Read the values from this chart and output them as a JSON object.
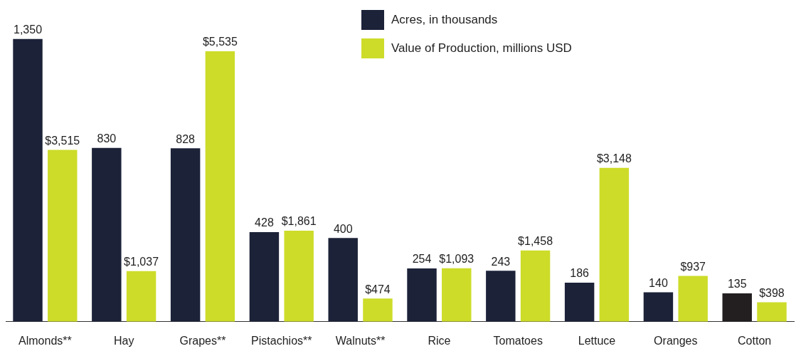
{
  "chart_data": {
    "type": "bar",
    "categories": [
      "Almonds**",
      "Hay",
      "Grapes**",
      "Pistachios**",
      "Walnuts**",
      "Rice",
      "Tomatoes",
      "Lettuce",
      "Oranges",
      "Cotton"
    ],
    "series": [
      {
        "name": "Acres, in thousands",
        "color": "#1c2238",
        "colors": [
          "#1c2238",
          "#1c2238",
          "#1c2238",
          "#1c2238",
          "#1c2238",
          "#1c2238",
          "#1c2238",
          "#1c2238",
          "#1c2238",
          "#231f20"
        ],
        "values": [
          1350,
          830,
          828,
          428,
          400,
          254,
          243,
          186,
          140,
          135
        ],
        "value_labels": [
          "1,350",
          "830",
          "828",
          "428",
          "400",
          "254",
          "243",
          "186",
          "140",
          "135"
        ]
      },
      {
        "name": "Value of Production, millions USD",
        "color": "#cddc29",
        "axis": "y2",
        "values": [
          3515,
          1037,
          5535,
          1861,
          474,
          1093,
          1458,
          3148,
          937,
          398
        ],
        "value_labels": [
          "$3,515",
          "$1,037",
          "$5,535",
          "$1,861",
          "$474",
          "$1,093",
          "$1,458",
          "$3,148",
          "$937",
          "$398"
        ]
      }
    ],
    "legend": "top",
    "tick_labels": "x",
    "grid": false
  }
}
